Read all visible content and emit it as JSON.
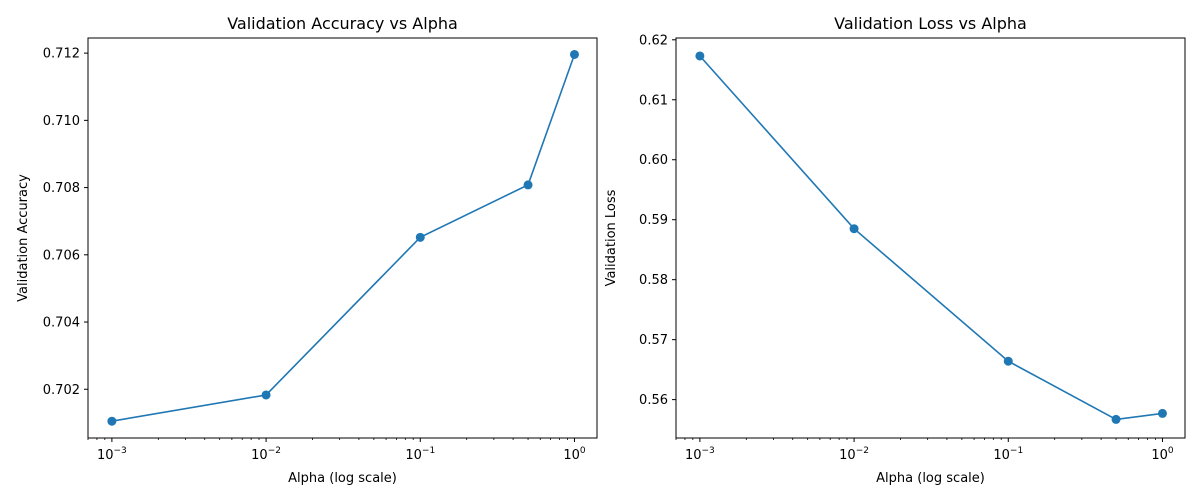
{
  "chart_data": [
    {
      "type": "line",
      "title": "Validation Accuracy vs Alpha",
      "xlabel": "Alpha (log scale)",
      "ylabel": "Validation Accuracy",
      "xscale": "log",
      "xlim": [
        0.0007,
        1.4
      ],
      "ylim": [
        0.70055,
        0.71245
      ],
      "xticks": [
        0.001,
        0.01,
        0.1,
        1
      ],
      "xtick_labels": [
        {
          "base": "10",
          "exp": "−3"
        },
        {
          "base": "10",
          "exp": "−2"
        },
        {
          "base": "10",
          "exp": "−1"
        },
        {
          "base": "10",
          "exp": "0"
        }
      ],
      "yticks": [
        0.702,
        0.704,
        0.706,
        0.708,
        0.71,
        0.712
      ],
      "ytick_labels": [
        "0.702",
        "0.704",
        "0.706",
        "0.708",
        "0.710",
        "0.712"
      ],
      "grid": false,
      "color": "#1f77b4",
      "marker": "circle",
      "x": [
        0.001,
        0.01,
        0.1,
        0.5,
        1
      ],
      "y": [
        0.70105,
        0.70183,
        0.70652,
        0.70808,
        0.71196
      ]
    },
    {
      "type": "line",
      "title": "Validation Loss vs Alpha",
      "xlabel": "Alpha (log scale)",
      "ylabel": "Validation Loss",
      "xscale": "log",
      "xlim": [
        0.0007,
        1.4
      ],
      "ylim": [
        0.5536,
        0.6203
      ],
      "xticks": [
        0.001,
        0.01,
        0.1,
        1
      ],
      "xtick_labels": [
        {
          "base": "10",
          "exp": "−3"
        },
        {
          "base": "10",
          "exp": "−2"
        },
        {
          "base": "10",
          "exp": "−1"
        },
        {
          "base": "10",
          "exp": "0"
        }
      ],
      "yticks": [
        0.56,
        0.57,
        0.58,
        0.59,
        0.6,
        0.61,
        0.62
      ],
      "ytick_labels": [
        "0.56",
        "0.57",
        "0.58",
        "0.59",
        "0.60",
        "0.61",
        "0.62"
      ],
      "grid": false,
      "color": "#1f77b4",
      "marker": "circle",
      "x": [
        0.001,
        0.01,
        0.1,
        0.5,
        1
      ],
      "y": [
        0.6173,
        0.5885,
        0.5664,
        0.5567,
        0.5577
      ]
    }
  ]
}
